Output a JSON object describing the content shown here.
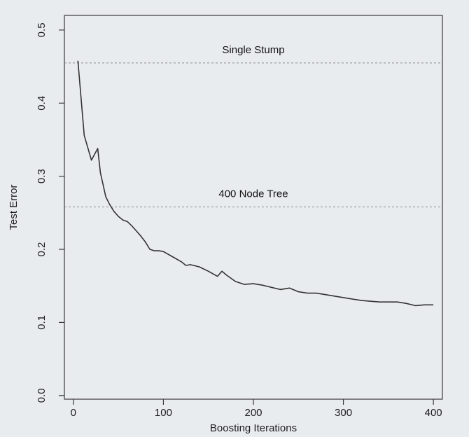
{
  "chart_data": {
    "type": "line",
    "title": "",
    "xlabel": "Boosting Iterations",
    "ylabel": "Test Error",
    "xlim": [
      -10,
      410
    ],
    "ylim": [
      -0.005,
      0.52
    ],
    "grid": false,
    "x_ticks": [
      0,
      100,
      200,
      300,
      400
    ],
    "x_tick_labels": [
      "0",
      "100",
      "200",
      "300",
      "400"
    ],
    "y_ticks": [
      0.0,
      0.1,
      0.2,
      0.3,
      0.4,
      0.5
    ],
    "y_tick_labels": [
      "0.0",
      "0.1",
      "0.2",
      "0.3",
      "0.4",
      "0.5"
    ],
    "series": [
      {
        "x": [
          5,
          12,
          20,
          27,
          30,
          36,
          40,
          45,
          50,
          55,
          60,
          65,
          70,
          75,
          80,
          85,
          90,
          95,
          100,
          110,
          120,
          125,
          130,
          140,
          150,
          160,
          165,
          170,
          180,
          190,
          200,
          210,
          220,
          230,
          240,
          250,
          260,
          270,
          280,
          290,
          300,
          320,
          340,
          360,
          370,
          380,
          390,
          400
        ],
        "y": [
          0.458,
          0.356,
          0.322,
          0.338,
          0.305,
          0.272,
          0.262,
          0.252,
          0.245,
          0.24,
          0.238,
          0.232,
          0.225,
          0.218,
          0.21,
          0.2,
          0.198,
          0.198,
          0.197,
          0.19,
          0.183,
          0.178,
          0.179,
          0.176,
          0.17,
          0.163,
          0.17,
          0.165,
          0.156,
          0.152,
          0.153,
          0.151,
          0.148,
          0.145,
          0.147,
          0.142,
          0.14,
          0.14,
          0.138,
          0.136,
          0.134,
          0.13,
          0.128,
          0.128,
          0.126,
          0.123,
          0.124,
          0.124
        ]
      }
    ],
    "reference_lines": [
      {
        "y": 0.455,
        "label": "Single Stump"
      },
      {
        "y": 0.258,
        "label": "400 Node Tree"
      }
    ]
  }
}
